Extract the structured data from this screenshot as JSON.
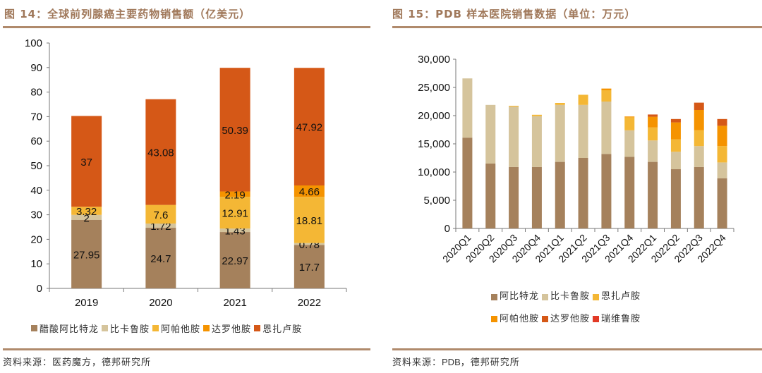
{
  "left": {
    "title": "图 14：全球前列腺癌主要药物销售额（亿美元）",
    "source": "资料来源：医药魔方，德邦研究所"
  },
  "right": {
    "title": "图 15：PDB 样本医院销售数据（单位：万元）",
    "source_prefix": "资料来源：",
    "source_latin": "PDB",
    "source_suffix": "，德邦研究所"
  },
  "chart_data": [
    {
      "type": "bar",
      "stacked": true,
      "title": "图 14：全球前列腺癌主要药物销售额（亿美元）",
      "xlabel": "",
      "ylabel": "",
      "categories": [
        "2019",
        "2020",
        "2021",
        "2022"
      ],
      "ylim": [
        0,
        100
      ],
      "yticks": [
        0,
        10,
        20,
        30,
        40,
        50,
        60,
        70,
        80,
        90,
        100
      ],
      "ytick_labels": [
        "0",
        "10",
        "20",
        "30",
        "40",
        "50",
        "60",
        "70",
        "80",
        "90",
        "100"
      ],
      "grid": false,
      "legend_position": "bottom",
      "data_labels": true,
      "series": [
        {
          "name": "醋酸阿比特龙",
          "color": "#a5815c",
          "values": [
            27.95,
            24.7,
            22.97,
            17.7
          ],
          "labels": [
            "27.95",
            "24.7",
            "22.97",
            "17.7"
          ]
        },
        {
          "name": "比卡鲁胺",
          "color": "#d5c49c",
          "values": [
            2,
            1.72,
            1.43,
            0.78
          ],
          "labels": [
            "2",
            "1.72",
            "1.43",
            "0.78"
          ]
        },
        {
          "name": "阿帕他胺",
          "color": "#f4b735",
          "values": [
            3.32,
            7.6,
            12.91,
            18.81
          ],
          "labels": [
            "3.32",
            "7.6",
            "12.91",
            "18.81"
          ]
        },
        {
          "name": "达罗他胺",
          "color": "#f59300",
          "values": [
            null,
            null,
            2.19,
            4.66
          ],
          "labels": [
            "",
            "",
            "2.19",
            "4.66"
          ]
        },
        {
          "name": "恩扎卢胺",
          "color": "#d55817",
          "values": [
            37,
            43.08,
            50.39,
            47.92
          ],
          "labels": [
            "37",
            "43.08",
            "50.39",
            "47.92"
          ]
        }
      ]
    },
    {
      "type": "bar",
      "stacked": true,
      "title": "图 15：PDB 样本医院销售数据（单位：万元）",
      "xlabel": "",
      "ylabel": "",
      "categories": [
        "2020Q1",
        "2020Q2",
        "2020Q3",
        "2020Q4",
        "2021Q1",
        "2021Q2",
        "2021Q3",
        "2021Q4",
        "2022Q1",
        "2022Q2",
        "2022Q3",
        "2022Q4"
      ],
      "ylim": [
        0,
        30000
      ],
      "yticks": [
        0,
        5000,
        10000,
        15000,
        20000,
        25000,
        30000
      ],
      "ytick_labels": [
        "0",
        "5,000",
        "10,000",
        "15,000",
        "20,000",
        "25,000",
        "30,000"
      ],
      "grid": false,
      "legend_position": "bottom",
      "data_labels": false,
      "series": [
        {
          "name": "阿比特龙",
          "color": "#a5815c",
          "values": [
            16100,
            11500,
            10900,
            10900,
            11800,
            12500,
            13200,
            12700,
            11800,
            10500,
            10900,
            8900
          ]
        },
        {
          "name": "比卡鲁胺",
          "color": "#d5c49c",
          "values": [
            10500,
            10400,
            10700,
            9000,
            10100,
            9400,
            9300,
            4700,
            3800,
            3100,
            3700,
            2800
          ]
        },
        {
          "name": "恩扎卢胺",
          "color": "#f4b735",
          "values": [
            0,
            0,
            150,
            250,
            350,
            1800,
            2000,
            2300,
            2300,
            2200,
            2800,
            2900
          ]
        },
        {
          "name": "阿帕他胺",
          "color": "#f59300",
          "values": [
            0,
            0,
            0,
            0,
            0,
            0,
            300,
            150,
            1900,
            3000,
            3600,
            3600
          ]
        },
        {
          "name": "达罗他胺",
          "color": "#d55817",
          "values": [
            0,
            0,
            0,
            0,
            0,
            0,
            0,
            0,
            400,
            600,
            1300,
            1200
          ]
        },
        {
          "name": "瑞维鲁胺",
          "color": "#e23a26",
          "values": [
            0,
            0,
            0,
            0,
            0,
            0,
            0,
            0,
            0,
            0,
            0,
            0
          ]
        }
      ]
    }
  ]
}
